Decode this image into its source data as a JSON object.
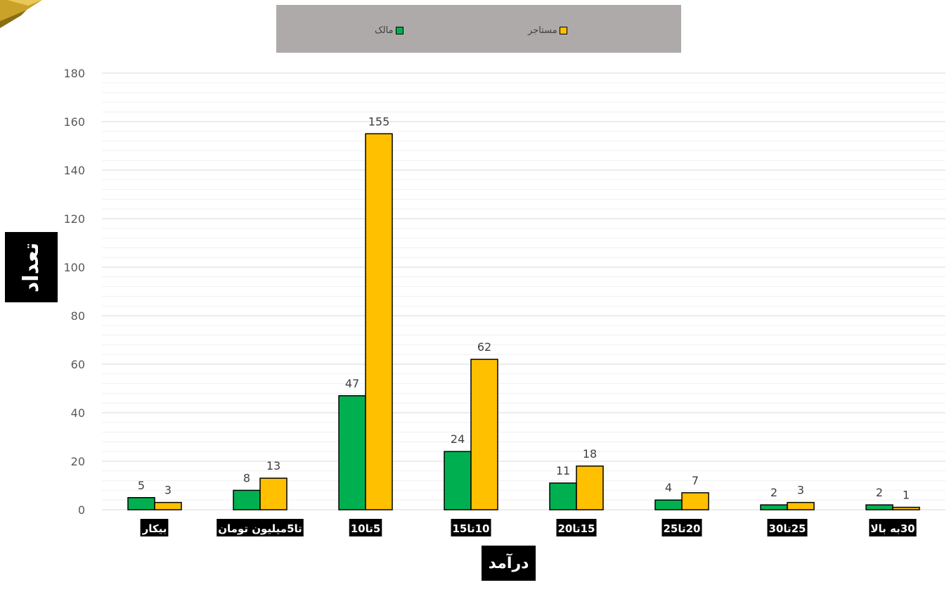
{
  "chart_data": {
    "type": "bar",
    "xlabel": "درآمد",
    "ylabel": "تعداد",
    "ylim": [
      0,
      180
    ],
    "yticks": [
      0,
      20,
      40,
      60,
      80,
      100,
      120,
      140,
      160,
      180
    ],
    "grid": true,
    "legend_position": "top",
    "categories": [
      "بیکار",
      "تا5میلیون تومان",
      "5تا10",
      "10تا15",
      "15تا20",
      "20تا25",
      "25تا30",
      "30به بالا"
    ],
    "series": [
      {
        "name": "مالک",
        "color": "#00b050",
        "values": [
          5,
          8,
          47,
          24,
          11,
          4,
          2,
          2
        ]
      },
      {
        "name": "مستاجر",
        "color": "#ffc000",
        "values": [
          3,
          13,
          155,
          62,
          18,
          7,
          3,
          1
        ]
      }
    ]
  }
}
